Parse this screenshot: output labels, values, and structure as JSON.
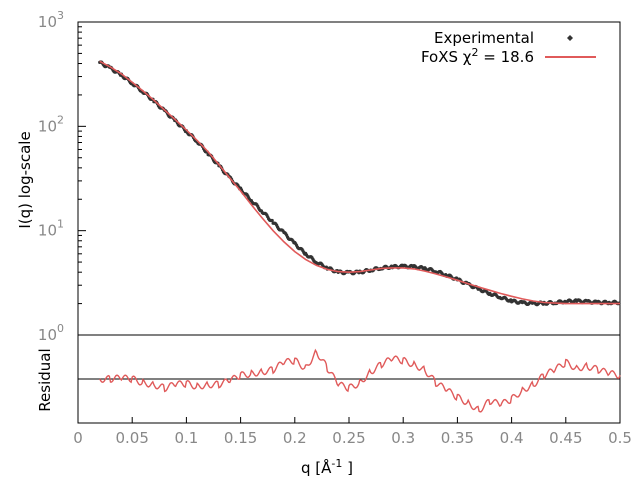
{
  "chart_data": [
    {
      "type": "line",
      "panel": "main",
      "xlabel": "q [Å",
      "xlabel_sup": "-1",
      "xlabel_close": " ]",
      "ylabel": "I(q) log-scale",
      "xlim": [
        0,
        0.5
      ],
      "ylim": [
        1,
        1000
      ],
      "yscale": "log",
      "xticks": [
        "0",
        "0.05",
        "0.1",
        "0.15",
        "0.2",
        "0.25",
        "0.3",
        "0.35",
        "0.4",
        "0.45",
        "0.5"
      ],
      "yticks": [
        {
          "base": "10",
          "exp": "0",
          "value": 1
        },
        {
          "base": "10",
          "exp": "1",
          "value": 10
        },
        {
          "base": "10",
          "exp": "2",
          "value": 100
        },
        {
          "base": "10",
          "exp": "3",
          "value": 1000
        }
      ],
      "legend_position": "top-right",
      "series": [
        {
          "name": "Experimental",
          "style": "points",
          "color": "#333333",
          "x": [
            0.02,
            0.03,
            0.04,
            0.05,
            0.06,
            0.07,
            0.08,
            0.09,
            0.1,
            0.11,
            0.12,
            0.13,
            0.14,
            0.15,
            0.16,
            0.17,
            0.18,
            0.19,
            0.2,
            0.21,
            0.22,
            0.23,
            0.24,
            0.25,
            0.26,
            0.27,
            0.28,
            0.29,
            0.3,
            0.31,
            0.32,
            0.33,
            0.34,
            0.35,
            0.36,
            0.37,
            0.38,
            0.39,
            0.4,
            0.41,
            0.42,
            0.43,
            0.44,
            0.45,
            0.46,
            0.47,
            0.48,
            0.49,
            0.5
          ],
          "y": [
            410,
            360,
            310,
            260,
            215,
            175,
            140,
            112,
            90,
            72,
            55,
            42,
            32,
            25,
            19.5,
            15.3,
            12.0,
            9.5,
            7.5,
            6.0,
            5.0,
            4.4,
            4.0,
            3.95,
            4.0,
            4.2,
            4.4,
            4.5,
            4.55,
            4.5,
            4.35,
            4.1,
            3.75,
            3.4,
            3.05,
            2.75,
            2.5,
            2.3,
            2.12,
            2.03,
            2.0,
            2.02,
            2.05,
            2.1,
            2.12,
            2.08,
            2.05,
            2.05,
            2.05
          ]
        },
        {
          "name": "FoXS χ",
          "name_sup": "2",
          "name_suffix": " = 18.6",
          "style": "line",
          "color": "#e05a5a",
          "x": [
            0.02,
            0.03,
            0.04,
            0.05,
            0.06,
            0.07,
            0.08,
            0.09,
            0.1,
            0.11,
            0.12,
            0.13,
            0.14,
            0.15,
            0.16,
            0.17,
            0.18,
            0.19,
            0.2,
            0.21,
            0.22,
            0.23,
            0.24,
            0.25,
            0.26,
            0.27,
            0.28,
            0.29,
            0.3,
            0.31,
            0.32,
            0.33,
            0.34,
            0.35,
            0.36,
            0.37,
            0.38,
            0.39,
            0.4,
            0.41,
            0.42,
            0.43,
            0.44,
            0.45,
            0.46,
            0.47,
            0.48,
            0.49,
            0.5
          ],
          "y": [
            420,
            370,
            318,
            265,
            218,
            178,
            143,
            115,
            92,
            73,
            57,
            43,
            32,
            24,
            17.7,
            13.2,
            10.0,
            7.8,
            6.3,
            5.3,
            4.65,
            4.25,
            4.05,
            4.0,
            4.05,
            4.2,
            4.35,
            4.4,
            4.4,
            4.3,
            4.1,
            3.85,
            3.6,
            3.35,
            3.1,
            2.88,
            2.68,
            2.5,
            2.35,
            2.22,
            2.12,
            2.05,
            2.02,
            2.0,
            2.0,
            2.0,
            2.0,
            2.0,
            2.0
          ]
        }
      ]
    },
    {
      "type": "line",
      "panel": "residual",
      "ylabel": "Residual",
      "xlim": [
        0,
        0.5
      ],
      "ylim": [
        -2.4,
        2.4
      ],
      "reference_line": 0,
      "series": [
        {
          "color": "#e05a5a",
          "x": [
            0.02,
            0.03,
            0.04,
            0.05,
            0.06,
            0.07,
            0.08,
            0.09,
            0.1,
            0.11,
            0.12,
            0.13,
            0.14,
            0.15,
            0.16,
            0.17,
            0.18,
            0.19,
            0.2,
            0.21,
            0.22,
            0.23,
            0.24,
            0.25,
            0.26,
            0.27,
            0.28,
            0.29,
            0.3,
            0.31,
            0.32,
            0.33,
            0.34,
            0.35,
            0.36,
            0.37,
            0.38,
            0.39,
            0.4,
            0.41,
            0.42,
            0.43,
            0.44,
            0.45,
            0.46,
            0.47,
            0.48,
            0.49,
            0.5
          ],
          "y": [
            0.0,
            0.0,
            0.05,
            0.0,
            -0.2,
            -0.3,
            -0.5,
            -0.3,
            -0.25,
            -0.4,
            -0.3,
            -0.3,
            -0.1,
            0.2,
            0.3,
            0.4,
            0.5,
            0.9,
            1.0,
            0.6,
            1.5,
            0.6,
            -0.3,
            -0.5,
            -0.2,
            0.4,
            0.8,
            1.1,
            1.0,
            0.8,
            0.5,
            -0.2,
            -0.6,
            -1.0,
            -1.3,
            -1.7,
            -1.2,
            -1.4,
            -1.1,
            -0.6,
            -0.3,
            0.2,
            0.5,
            0.9,
            0.6,
            0.7,
            0.5,
            0.3,
            0.2
          ]
        }
      ]
    }
  ]
}
